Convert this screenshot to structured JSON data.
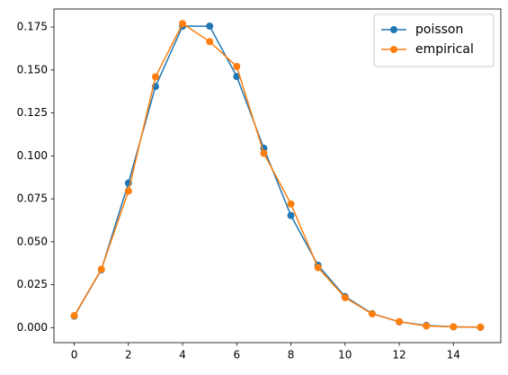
{
  "chart_data": {
    "type": "line",
    "x": [
      0,
      1,
      2,
      3,
      4,
      5,
      6,
      7,
      8,
      9,
      10,
      11,
      12,
      13,
      14,
      15
    ],
    "series": [
      {
        "name": "poisson",
        "color": "#1f77b4",
        "values": [
          0.0067,
          0.0337,
          0.0842,
          0.1404,
          0.1755,
          0.1755,
          0.1462,
          0.1044,
          0.0653,
          0.0363,
          0.0181,
          0.0082,
          0.0034,
          0.0013,
          0.0005,
          0.0002
        ]
      },
      {
        "name": "empirical",
        "color": "#ff7f0e",
        "values": [
          0.007,
          0.034,
          0.0795,
          0.146,
          0.177,
          0.1665,
          0.152,
          0.1015,
          0.072,
          0.035,
          0.0175,
          0.008,
          0.0035,
          0.001,
          0.0005,
          0.0003
        ]
      }
    ],
    "xlim": [
      -0.75,
      15.75
    ],
    "xticks": [
      0,
      2,
      4,
      6,
      8,
      10,
      12,
      14
    ],
    "ylim": [
      -0.0087,
      0.1855
    ],
    "yticks": [
      {
        "value": 0,
        "label": "0.000"
      },
      {
        "value": 0.025,
        "label": "0.025"
      },
      {
        "value": 0.05,
        "label": "0.050"
      },
      {
        "value": 0.075,
        "label": "0.075"
      },
      {
        "value": 0.1,
        "label": "0.100"
      },
      {
        "value": 0.125,
        "label": "0.125"
      },
      {
        "value": 0.15,
        "label": "0.150"
      },
      {
        "value": 0.175,
        "label": "0.175"
      }
    ],
    "legend": "upper right"
  }
}
